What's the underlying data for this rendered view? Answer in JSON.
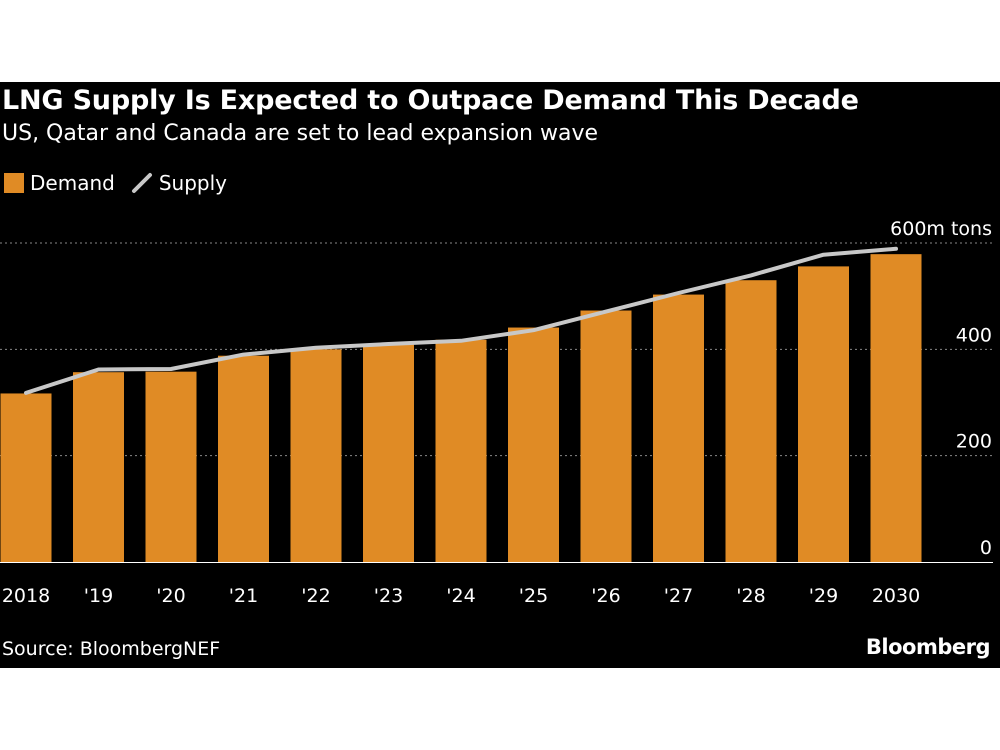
{
  "colors": {
    "background": "#000000",
    "bar": "#e08b25",
    "line": "#c8c8c8",
    "grid": "#888888",
    "text": "#ffffff"
  },
  "legend": {
    "demand_label": "Demand",
    "supply_label": "Supply"
  },
  "footer": {
    "source": "Source: BloombergNEF",
    "brand": "Bloomberg"
  },
  "chart_data": {
    "type": "bar",
    "title": "LNG Supply Is Expected to Outpace Demand This Decade",
    "subtitle": "US, Qatar and Canada are set to lead expansion wave",
    "categories": [
      "2018",
      "'19",
      "'20",
      "'21",
      "'22",
      "'23",
      "'24",
      "'25",
      "'26",
      "'27",
      "'28",
      "'29",
      "2030"
    ],
    "series": [
      {
        "name": "Demand",
        "kind": "bar",
        "values": [
          317,
          357,
          358,
          388,
          400,
          409,
          418,
          441,
          473,
          503,
          530,
          556,
          579
        ]
      },
      {
        "name": "Supply",
        "kind": "line",
        "values": [
          318,
          362,
          363,
          390,
          403,
          410,
          416,
          436,
          471,
          506,
          539,
          578,
          589
        ]
      }
    ],
    "yaxis": {
      "side": "right",
      "ylim": [
        0,
        600
      ],
      "ticks": [
        0,
        200,
        400,
        600
      ],
      "tick_labels": [
        "0",
        "200",
        "400",
        "600m tons"
      ]
    },
    "grid": true
  }
}
